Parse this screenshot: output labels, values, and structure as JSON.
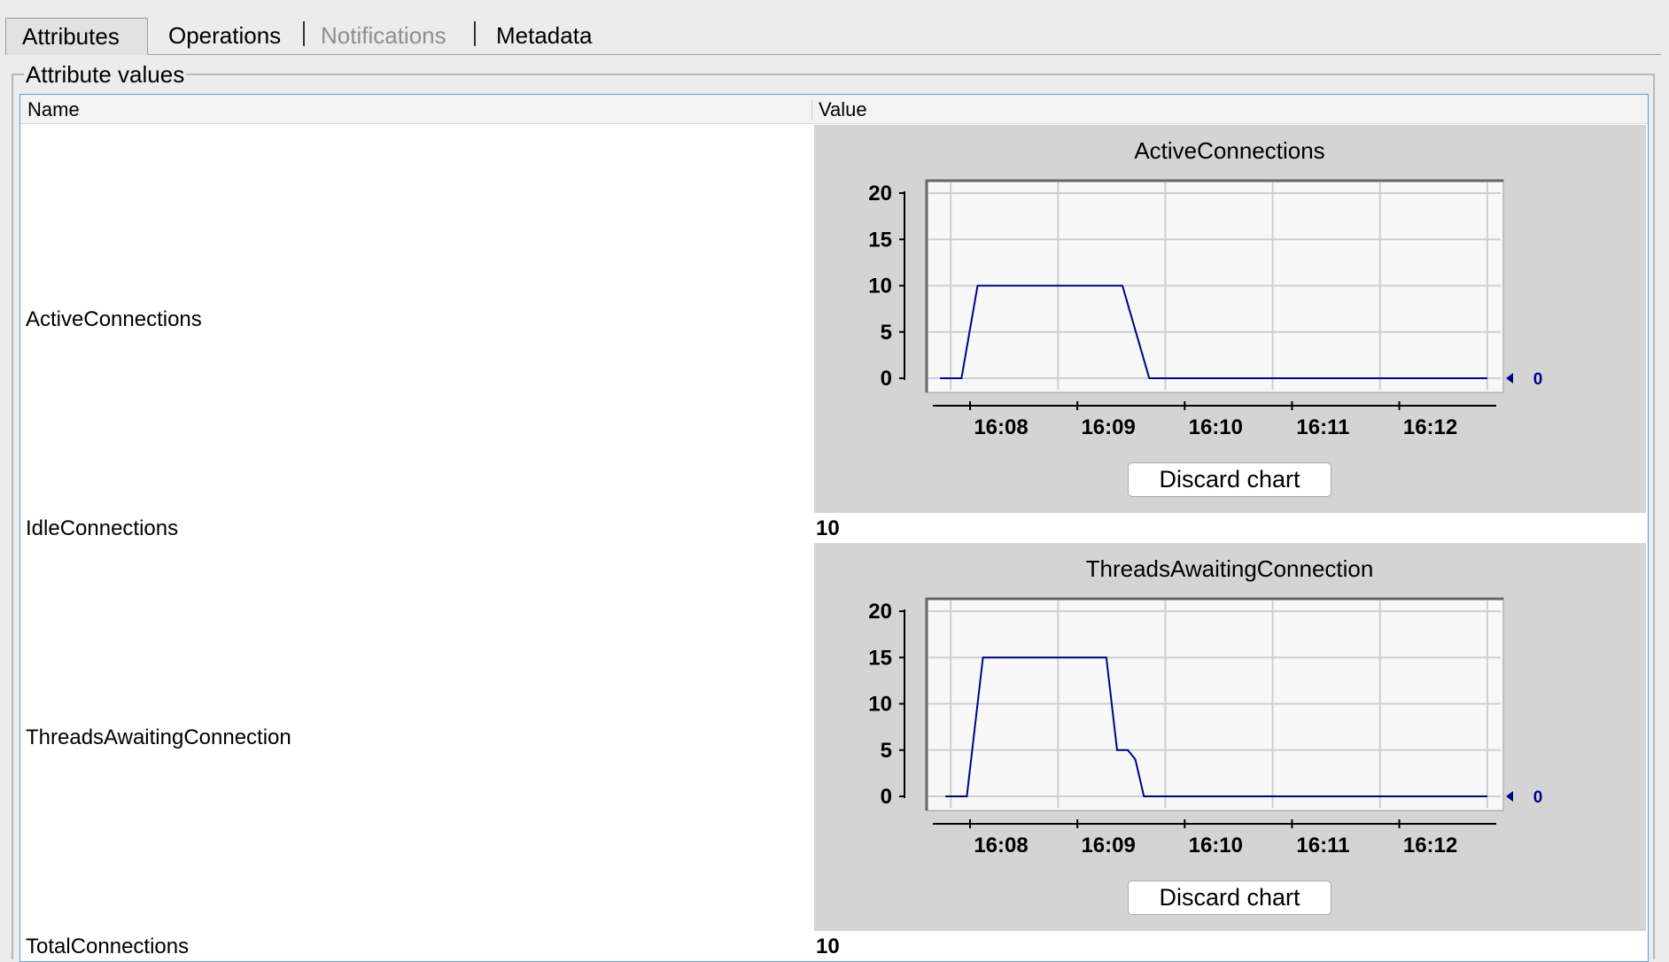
{
  "tabs": [
    {
      "label": "Attributes",
      "state": "active"
    },
    {
      "label": "Operations",
      "state": "normal"
    },
    {
      "label": "Notifications",
      "state": "disabled"
    },
    {
      "label": "Metadata",
      "state": "normal"
    }
  ],
  "group_title": "Attribute values",
  "table": {
    "col_name": "Name",
    "col_value": "Value",
    "rows": [
      {
        "name": "ActiveConnections"
      },
      {
        "name": "IdleConnections",
        "value": "10"
      },
      {
        "name": "ThreadsAwaitingConnection"
      },
      {
        "name": "TotalConnections",
        "value": "10"
      }
    ]
  },
  "discard_label": "Discard chart",
  "colors": {
    "series": "#00008b"
  },
  "chart_data": [
    {
      "type": "line",
      "title": "ActiveConnections",
      "x_ticks": [
        "16:08",
        "16:09",
        "16:10",
        "16:11",
        "16:12"
      ],
      "y_ticks": [
        "0",
        "5",
        "10",
        "15",
        "20"
      ],
      "ylim": [
        0,
        20
      ],
      "x_range_min": [
        -0.4,
        4.9
      ],
      "series": [
        {
          "x": [
            -0.3,
            -0.1,
            0.05,
            1.4,
            1.55,
            1.65,
            4.8
          ],
          "y": [
            0,
            0,
            10,
            10,
            4,
            0,
            0
          ]
        }
      ],
      "current_value": "0"
    },
    {
      "type": "line",
      "title": "ThreadsAwaitingConnection",
      "x_ticks": [
        "16:08",
        "16:09",
        "16:10",
        "16:11",
        "16:12"
      ],
      "y_ticks": [
        "0",
        "5",
        "10",
        "15",
        "20"
      ],
      "ylim": [
        0,
        20
      ],
      "x_range_min": [
        -0.4,
        4.9
      ],
      "series": [
        {
          "x": [
            -0.25,
            -0.05,
            0.1,
            1.25,
            1.35,
            1.45,
            1.52,
            1.6,
            4.8
          ],
          "y": [
            0,
            0,
            15,
            15,
            5,
            5,
            4,
            0,
            0
          ]
        }
      ],
      "current_value": "0"
    }
  ]
}
